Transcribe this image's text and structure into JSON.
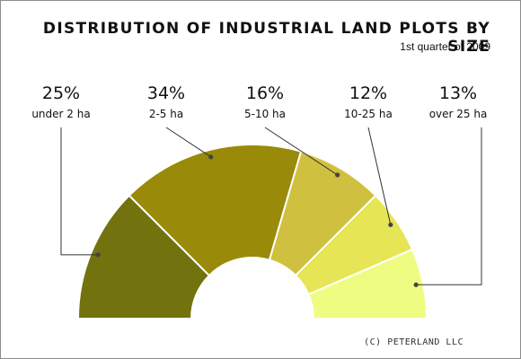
{
  "header": {
    "title": "DISTRIBUTION OF INDUSTRIAL LAND PLOTS BY SIZE",
    "subtitle": "1st quarter of 2009"
  },
  "footer": {
    "credit": "(C) PETERLAND LLC"
  },
  "chart_data": {
    "type": "pie",
    "subtype": "semi-donut",
    "title": "DISTRIBUTION OF INDUSTRIAL LAND PLOTS BY SIZE",
    "subtitle": "1st quarter of 2009",
    "categories": [
      "under 2 ha",
      "2-5 ha",
      "5-10 ha",
      "10-25 ha",
      "over 25 ha"
    ],
    "values": [
      25,
      34,
      16,
      12,
      13
    ],
    "value_labels": [
      "25%",
      "34%",
      "16%",
      "12%",
      "13%"
    ],
    "unit": "%",
    "colors": [
      "#72720f",
      "#998a09",
      "#cfc13f",
      "#e6e555",
      "#eefd82"
    ],
    "leader_color": "#333333",
    "grid": false,
    "legend": "none"
  }
}
